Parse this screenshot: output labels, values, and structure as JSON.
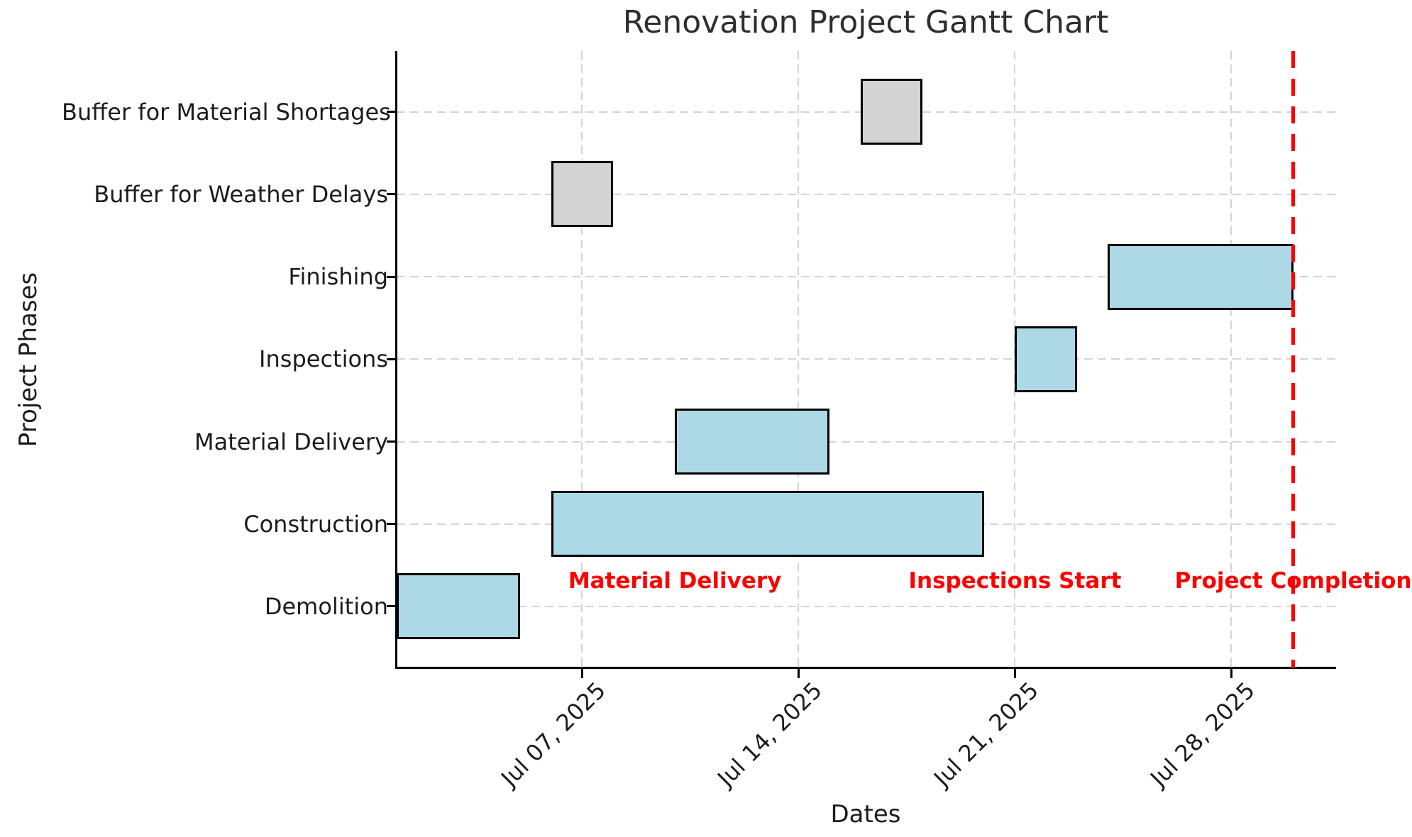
{
  "chart_data": {
    "type": "bar",
    "variant": "horizontal-gantt",
    "title": "Renovation Project Gantt Chart",
    "xlabel": "Dates",
    "ylabel": "Project Phases",
    "grid": true,
    "x_range": [
      "Jul 01, 2025",
      "Jul 31, 2025"
    ],
    "x_ticks": [
      {
        "label": "Jul 07, 2025",
        "day": 7
      },
      {
        "label": "Jul 14, 2025",
        "day": 14
      },
      {
        "label": "Jul 21, 2025",
        "day": 21
      },
      {
        "label": "Jul 28, 2025",
        "day": 28
      }
    ],
    "tasks": [
      {
        "name": "Buffer for Material Shortages",
        "start": "Jul 16, 2025",
        "end": "Jul 18, 2025",
        "start_day": 16,
        "end_day": 18,
        "category": "buffer"
      },
      {
        "name": "Buffer for Weather Delays",
        "start": "Jul 06, 2025",
        "end": "Jul 08, 2025",
        "start_day": 6,
        "end_day": 8,
        "category": "buffer"
      },
      {
        "name": "Finishing",
        "start": "Jul 24, 2025",
        "end": "Jul 30, 2025",
        "start_day": 24,
        "end_day": 30,
        "category": "task"
      },
      {
        "name": "Inspections",
        "start": "Jul 21, 2025",
        "end": "Jul 23, 2025",
        "start_day": 21,
        "end_day": 23,
        "category": "task"
      },
      {
        "name": "Material Delivery",
        "start": "Jul 10, 2025",
        "end": "Jul 15, 2025",
        "start_day": 10,
        "end_day": 15,
        "category": "task"
      },
      {
        "name": "Construction",
        "start": "Jul 06, 2025",
        "end": "Jul 20, 2025",
        "start_day": 6,
        "end_day": 20,
        "category": "task"
      },
      {
        "name": "Demolition",
        "start": "Jul 01, 2025",
        "end": "Jul 05, 2025",
        "start_day": 1,
        "end_day": 5,
        "category": "task"
      }
    ],
    "milestones": [
      {
        "label": "Material Delivery",
        "date": "Jul 10, 2025",
        "day": 10
      },
      {
        "label": "Inspections Start",
        "date": "Jul 21, 2025",
        "day": 21
      },
      {
        "label": "Project Completion",
        "date": "Jul 30, 2025",
        "day": 30
      }
    ],
    "completion_line": {
      "date": "Jul 30, 2025",
      "day": 30,
      "style": "dashed"
    },
    "colors": {
      "task_fill": "#add8e6",
      "buffer_fill": "#d3d3d3",
      "bar_edge": "#000000",
      "grid": "#d4d4d4",
      "milestone_text": "#ff0000",
      "completion_line": "#ff0000",
      "title_text": "#2e2e2e",
      "axis_text": "#1c1c1c"
    },
    "legend": null
  }
}
